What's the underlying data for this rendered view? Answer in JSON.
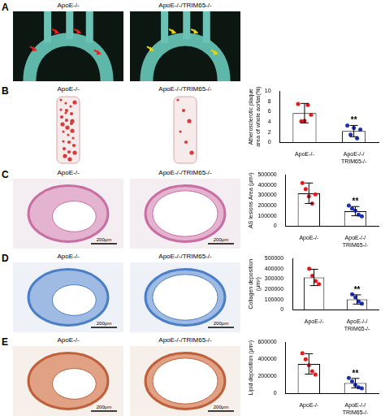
{
  "image_panels": [
    {
      "panel": "A",
      "labels": [
        "ApoE-/-",
        "ApoE-/-/TRIM65-/-"
      ]
    },
    {
      "panel": "B",
      "labels": [
        "ApoE-/-",
        "ApoE-/-/TRIM65-/-"
      ]
    },
    {
      "panel": "C",
      "labels": [
        "ApoE-/-",
        "ApoE-/-/TRIM65-/-"
      ],
      "scale_bar": "200μm"
    },
    {
      "panel": "D",
      "labels": [
        "ApoE-/-",
        "ApoE-/-/TRIM65-/-"
      ],
      "scale_bar": "200μm"
    },
    {
      "panel": "E",
      "labels": [
        "ApoE-/-",
        "ApoE-/-/TRIM65-/-"
      ],
      "scale_bar": "200μm"
    }
  ],
  "chart_data": [
    {
      "panel": "B",
      "type": "bar",
      "y_label": "Atherosclerotic plaque area of whole aortas(%)",
      "categories": [
        "ApoE-/-",
        "ApoE-/-/TRIM65-/-"
      ],
      "values": [
        5.7,
        2.2
      ],
      "error": [
        1.9,
        1.1
      ],
      "points": [
        [
          7.5,
          4.1,
          4.2,
          7.3,
          5.4
        ],
        [
          3.3,
          1.5,
          2.8,
          0.8,
          2.5
        ]
      ],
      "color": "#ffffff",
      "colors": [
        "#e41a1c",
        "#1a2fb5"
      ],
      "marker": "circle",
      "ylim": [
        0,
        10
      ],
      "yticks": [
        0,
        2,
        4,
        6,
        8,
        10
      ],
      "grid": false,
      "annotations": [
        {
          "category": "ApoE-/-/TRIM65-/-",
          "text": "**"
        }
      ]
    },
    {
      "panel": "C",
      "type": "bar",
      "y_label": "AS lesions Area (μm²)",
      "categories": [
        "ApoE-/-",
        "ApoE-/-/TRIM65-/-"
      ],
      "values": [
        320000,
        145000
      ],
      "error": [
        100000,
        45000
      ],
      "points": [
        [
          420000,
          360000,
          290000,
          220000,
          310000
        ],
        [
          200000,
          170000,
          150000,
          110000,
          95000
        ]
      ],
      "color": "#ffffff",
      "colors": [
        "#e41a1c",
        "#1a2fb5"
      ],
      "marker": "circle",
      "ylim": [
        0,
        500000
      ],
      "yticks": [
        0,
        100000,
        200000,
        300000,
        400000,
        500000
      ],
      "grid": false,
      "annotations": [
        {
          "category": "ApoE-/-/TRIM65-/-",
          "text": "**"
        }
      ]
    },
    {
      "panel": "D",
      "type": "bar",
      "y_label": "Collagen deposition (μm²)",
      "categories": [
        "ApoE-/-",
        "ApoE-/-/TRIM65-/-"
      ],
      "values": [
        315000,
        100000
      ],
      "error": [
        80000,
        45000
      ],
      "points": [
        [
          400000,
          330000,
          280000,
          250000
        ],
        [
          150000,
          120000,
          80000,
          60000
        ]
      ],
      "color": "#ffffff",
      "colors": [
        "#e41a1c",
        "#1a2fb5"
      ],
      "marker": "circle",
      "ylim": [
        0,
        500000
      ],
      "yticks": [
        0,
        100000,
        200000,
        300000,
        400000,
        500000
      ],
      "grid": false,
      "annotations": [
        {
          "category": "ApoE-/-/TRIM65-/-",
          "text": "**"
        }
      ]
    },
    {
      "panel": "E",
      "type": "bar",
      "y_label": "Lipid deposition (μm²)",
      "categories": [
        "ApoE-/-",
        "ApoE-/-/TRIM65-/-"
      ],
      "values": [
        345000,
        120000
      ],
      "error": [
        120000,
        55000
      ],
      "points": [
        [
          470000,
          400000,
          330000,
          260000,
          220000
        ],
        [
          180000,
          140000,
          100000,
          70000,
          60000
        ]
      ],
      "color": "#ffffff",
      "colors": [
        "#e41a1c",
        "#1a2fb5"
      ],
      "marker": "circle",
      "ylim": [
        0,
        600000
      ],
      "yticks": [
        0,
        200000,
        400000,
        600000
      ],
      "grid": false,
      "annotations": [
        {
          "category": "ApoE-/-/TRIM65-/-",
          "text": "**"
        }
      ]
    }
  ]
}
